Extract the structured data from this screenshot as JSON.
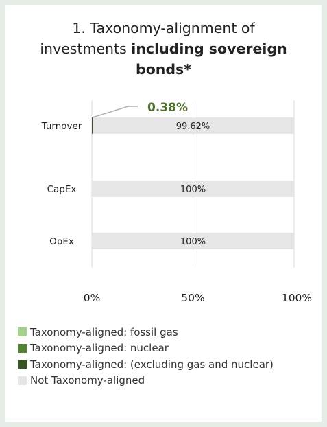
{
  "title": {
    "line1": "1. Taxonomy-alignment of",
    "line2_regular": "investments ",
    "line2_bold": "including sovereign",
    "line3_bold": "bonds*"
  },
  "chart_data": {
    "type": "bar",
    "orientation": "horizontal",
    "stacked": true,
    "categories": [
      "Turnover",
      "CapEx",
      "OpEx"
    ],
    "series": [
      {
        "name": "Taxonomy-aligned: fossil gas",
        "color": "#a9d18e",
        "values": [
          0,
          0,
          0
        ]
      },
      {
        "name": "Taxonomy-aligned: nuclear",
        "color": "#548235",
        "values": [
          0,
          0,
          0
        ]
      },
      {
        "name": "Taxonomy-aligned: (excluding gas and nuclear)",
        "color": "#375623",
        "values": [
          0.38,
          0,
          0
        ]
      },
      {
        "name": "Not Taxonomy-aligned",
        "color": "#e6e6e6",
        "values": [
          99.62,
          100,
          100
        ]
      }
    ],
    "data_labels": [
      "99.62%",
      "100%",
      "100%"
    ],
    "annotation": {
      "text": "0.38%",
      "category": "Turnover",
      "color": "#4e6e2a"
    },
    "x_ticks": [
      "0%",
      "50%",
      "100%"
    ],
    "xlim": [
      0,
      100
    ],
    "grid": true,
    "legend_position": "bottom"
  }
}
